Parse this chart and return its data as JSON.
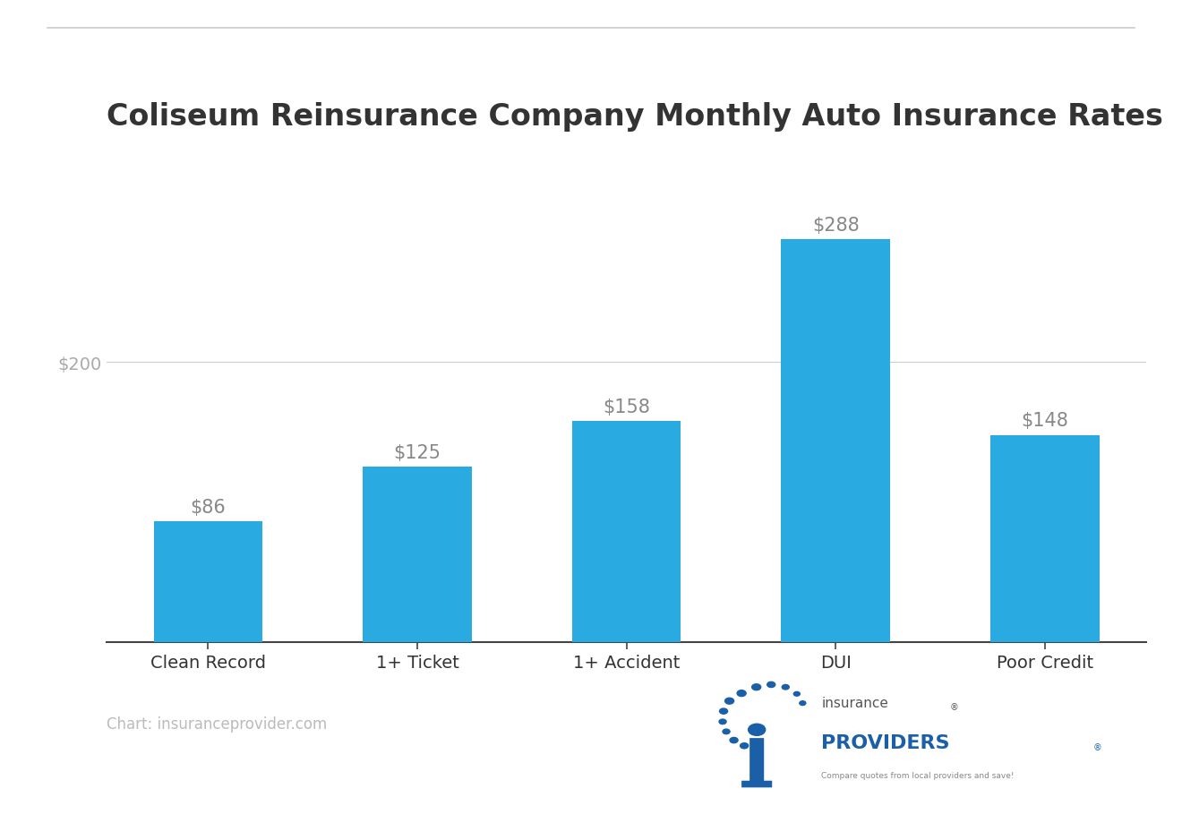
{
  "title": "Coliseum Reinsurance Company Monthly Auto Insurance Rates",
  "categories": [
    "Clean Record",
    "1+ Ticket",
    "1+ Accident",
    "DUI",
    "Poor Credit"
  ],
  "values": [
    86,
    125,
    158,
    288,
    148
  ],
  "bar_color": "#29ABE2",
  "value_labels": [
    "$86",
    "$125",
    "$158",
    "$288",
    "$148"
  ],
  "ytick_label": "$200",
  "ytick_value": 200,
  "background_color": "#ffffff",
  "title_fontsize": 24,
  "title_fontweight": "bold",
  "title_color": "#333333",
  "bar_label_color": "#888888",
  "bar_label_fontsize": 15,
  "xlabel_fontsize": 14,
  "xlabel_color": "#333333",
  "ytick_color": "#aaaaaa",
  "ytick_fontsize": 14,
  "source_text": "Chart: insuranceprovider.com",
  "source_color": "#bbbbbb",
  "source_fontsize": 12,
  "top_line_color": "#cccccc",
  "axis_line_color": "#444444",
  "grid_color": "#cccccc",
  "ylim": [
    0,
    330
  ],
  "bar_width": 0.52,
  "logo_insurance_color": "#555555",
  "logo_providers_color": "#1A5FA8",
  "logo_tagline_color": "#888888",
  "logo_i_color": "#1A5FA8",
  "logo_dot_color": "#1A5FA8"
}
